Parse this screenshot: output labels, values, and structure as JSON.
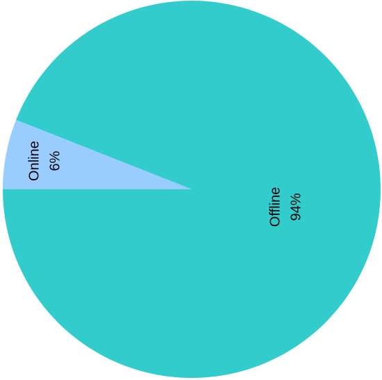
{
  "chart_data": {
    "type": "pie",
    "title": "",
    "slices": [
      {
        "name": "Offline",
        "value": 94,
        "value_label": "94%",
        "color": "#33CCCC"
      },
      {
        "name": "Online",
        "value": 6,
        "value_label": "6%",
        "color": "#99CCFF"
      }
    ],
    "legend": "none",
    "labels_on_slices": true
  }
}
